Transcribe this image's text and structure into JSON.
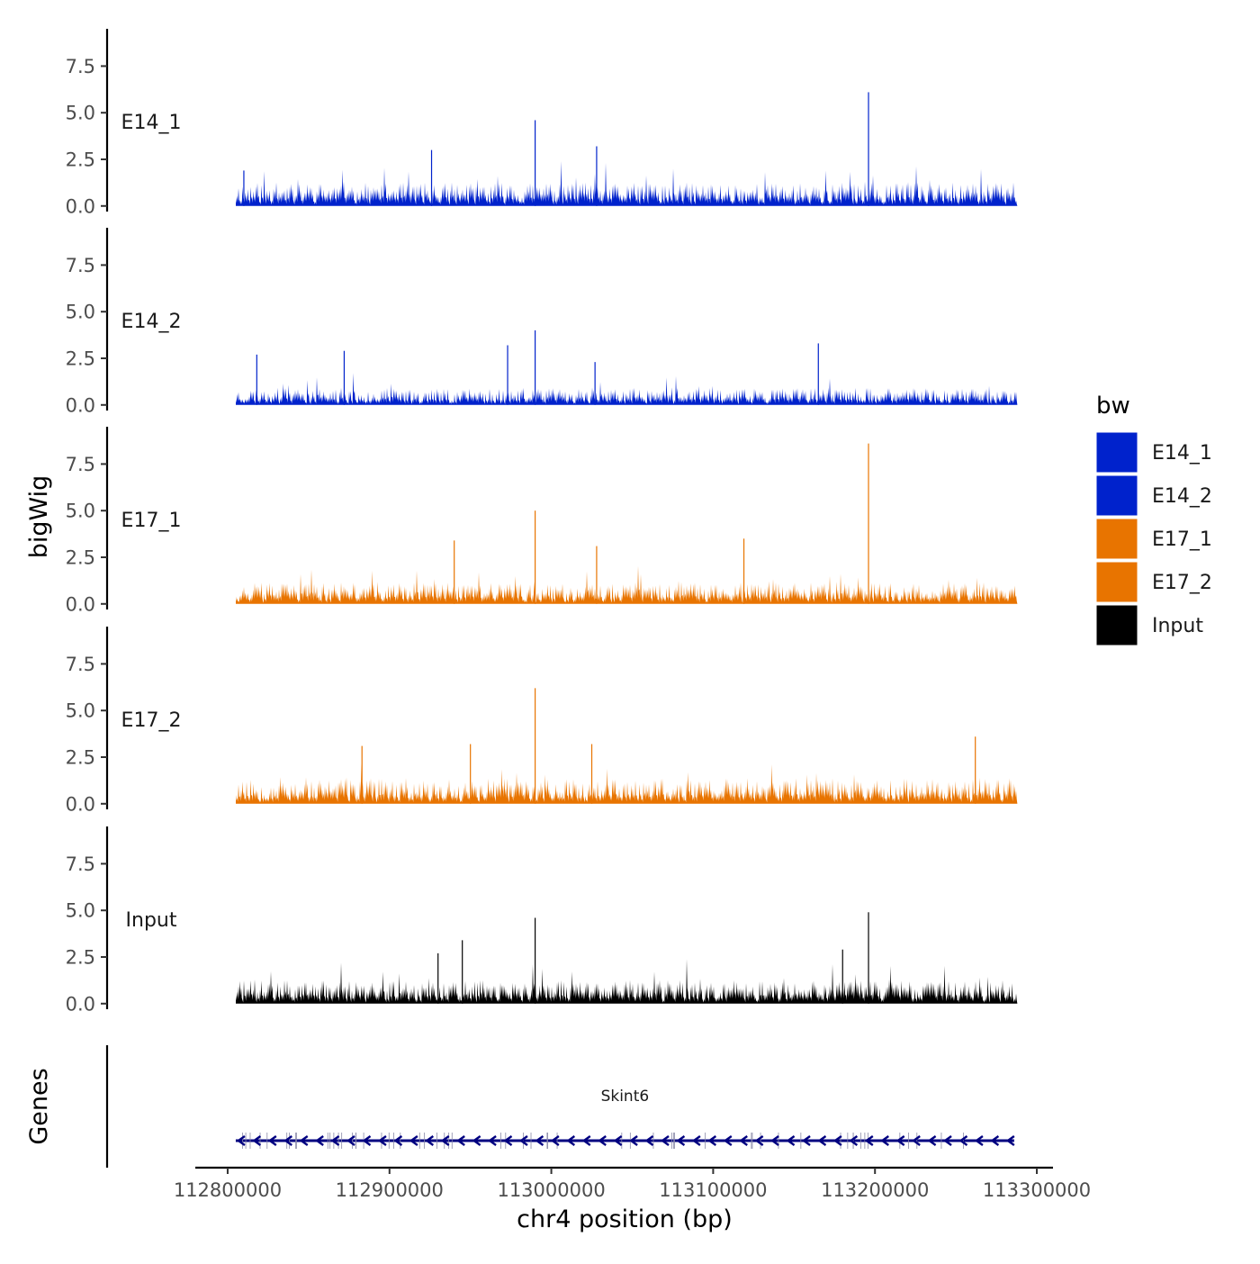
{
  "chart_data": {
    "type": "area",
    "title": "",
    "ylabel": "bigWig",
    "gene_track_label": "Genes",
    "xlabel": "chr4 position (bp)",
    "xlim": [
      112780000,
      113310000
    ],
    "data_range": [
      112805000,
      113288000
    ],
    "x_ticks": [
      112800000,
      112900000,
      113000000,
      113100000,
      113200000,
      113300000
    ],
    "x_tick_labels": [
      "112800000",
      "112900000",
      "113000000",
      "113100000",
      "113200000",
      "113300000"
    ],
    "ylim": [
      -0.3,
      9.5
    ],
    "y_ticks": [
      0.0,
      2.5,
      5.0,
      7.5
    ],
    "y_tick_labels": [
      "0.0",
      "2.5",
      "5.0",
      "7.5"
    ],
    "legend": {
      "title": "bw",
      "position": "right",
      "entries": [
        {
          "label": "E14_1",
          "color": "#0022CC"
        },
        {
          "label": "E14_2",
          "color": "#0022CC"
        },
        {
          "label": "E17_1",
          "color": "#E87400"
        },
        {
          "label": "E17_2",
          "color": "#E87400"
        },
        {
          "label": "Input",
          "color": "#000000"
        }
      ]
    },
    "series": [
      {
        "name": "E14_1",
        "color": "#0022CC",
        "baseline": 1.1,
        "noise": 1.0,
        "seed": 11,
        "peaks": [
          [
            112926000,
            3.0
          ],
          [
            112990000,
            4.6
          ],
          [
            113028000,
            3.2
          ],
          [
            113196000,
            6.1
          ],
          [
            112810000,
            1.9
          ]
        ]
      },
      {
        "name": "E14_2",
        "color": "#0022CC",
        "baseline": 0.8,
        "noise": 1.0,
        "seed": 23,
        "peaks": [
          [
            112872000,
            2.9
          ],
          [
            112973000,
            3.2
          ],
          [
            112990000,
            4.0
          ],
          [
            113027000,
            2.3
          ],
          [
            113165000,
            3.3
          ],
          [
            112818000,
            2.7
          ]
        ]
      },
      {
        "name": "E17_1",
        "color": "#E87400",
        "baseline": 1.0,
        "noise": 1.0,
        "seed": 37,
        "peaks": [
          [
            112940000,
            3.4
          ],
          [
            112990000,
            5.0
          ],
          [
            113028000,
            3.1
          ],
          [
            113119000,
            3.5
          ],
          [
            113196000,
            8.6
          ]
        ]
      },
      {
        "name": "E17_2",
        "color": "#E87400",
        "baseline": 1.2,
        "noise": 1.0,
        "seed": 53,
        "peaks": [
          [
            112990000,
            6.2
          ],
          [
            113025000,
            3.2
          ],
          [
            113262000,
            3.6
          ],
          [
            112883000,
            3.1
          ],
          [
            112950000,
            3.2
          ]
        ]
      },
      {
        "name": "Input",
        "color": "#000000",
        "baseline": 1.1,
        "noise": 1.0,
        "seed": 71,
        "peaks": [
          [
            112945000,
            3.4
          ],
          [
            112990000,
            4.6
          ],
          [
            113196000,
            4.9
          ],
          [
            112930000,
            2.7
          ],
          [
            113180000,
            2.9
          ]
        ]
      }
    ],
    "genes": [
      {
        "name": "Skint6",
        "strand": "-",
        "start": 112805000,
        "end": 113286000,
        "color": "#000080",
        "exon_count": 26
      }
    ]
  }
}
